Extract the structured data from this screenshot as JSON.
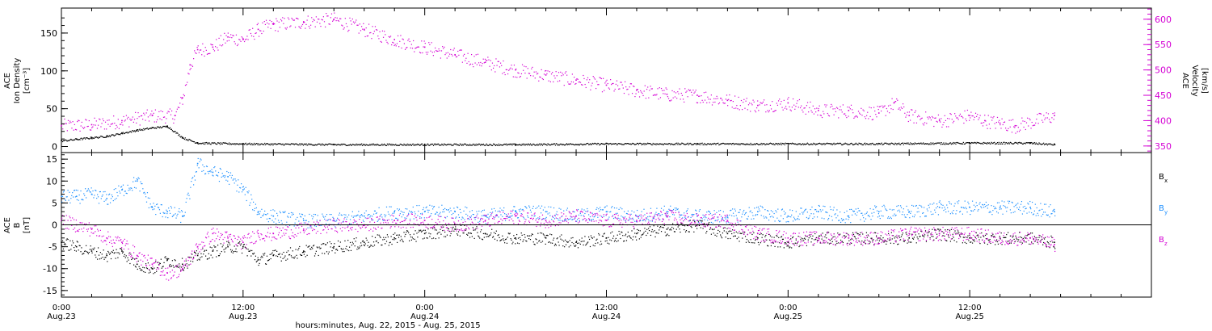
{
  "colors": {
    "density": "#000000",
    "velocity": "#d400d4",
    "bx": "#000000",
    "by": "#1e90ff",
    "bz": "#d400d4",
    "axis": "#000000"
  },
  "x_axis": {
    "title": "hours:minutes, Aug. 22, 2015 - Aug. 25, 2015",
    "range_hours": [
      0,
      72
    ],
    "ticks": [
      {
        "hour": 0,
        "time": "0:00",
        "date": "Aug.23"
      },
      {
        "hour": 12,
        "time": "12:00",
        "date": "Aug.23"
      },
      {
        "hour": 24,
        "time": "0:00",
        "date": "Aug.24"
      },
      {
        "hour": 36,
        "time": "12:00",
        "date": "Aug.24"
      },
      {
        "hour": 48,
        "time": "0:00",
        "date": "Aug.25"
      },
      {
        "hour": 60,
        "time": "12:00",
        "date": "Aug.25"
      }
    ]
  },
  "chart_data": [
    {
      "type": "scatter",
      "panel": "top",
      "left_axis": {
        "label_lines": [
          "ACE",
          "Ion Density",
          "[cm⁻³]"
        ],
        "ylim": [
          -8,
          183
        ],
        "ticks": [
          "0",
          "50",
          "100",
          "150"
        ],
        "tick_values": [
          0,
          50,
          100,
          150
        ]
      },
      "right_axis": {
        "label_lines": [
          "ACE",
          "Velocity",
          "[km/s]"
        ],
        "ylim": [
          337,
          622
        ],
        "ticks": [
          "350",
          "400",
          "450",
          "500",
          "550",
          "600"
        ],
        "tick_values": [
          350,
          400,
          450,
          500,
          550,
          600
        ]
      },
      "series": [
        {
          "name": "Ion Density",
          "axis": "left",
          "x": [
            0,
            1,
            2,
            3,
            4,
            5,
            6,
            7,
            8,
            9,
            12,
            18,
            24,
            30,
            36,
            42,
            48,
            54,
            60,
            64,
            65.6
          ],
          "y": [
            8,
            10,
            12,
            14,
            18,
            22,
            25,
            27,
            12,
            5,
            4,
            3,
            3,
            3,
            4,
            4,
            4,
            4,
            5,
            5,
            3
          ]
        },
        {
          "name": "Velocity",
          "axis": "right",
          "x": [
            0,
            2,
            4,
            6,
            7.5,
            8,
            8.5,
            9,
            10,
            11,
            12,
            13,
            14,
            16,
            18,
            20,
            22,
            24,
            26,
            28,
            30,
            32,
            34,
            36,
            38,
            40,
            42,
            44,
            46,
            48,
            50,
            52,
            54,
            55,
            56,
            58,
            60,
            61,
            62,
            63,
            65.6
          ],
          "y": [
            390,
            392,
            400,
            410,
            410,
            445,
            510,
            540,
            545,
            565,
            560,
            580,
            590,
            595,
            600,
            580,
            560,
            545,
            530,
            515,
            500,
            490,
            480,
            470,
            460,
            452,
            450,
            440,
            430,
            435,
            420,
            420,
            415,
            435,
            410,
            400,
            410,
            400,
            395,
            390,
            410
          ]
        }
      ]
    },
    {
      "type": "scatter",
      "panel": "bottom",
      "left_axis": {
        "label_lines": [
          "ACE",
          "B",
          "[nT]"
        ],
        "ylim": [
          -16.5,
          16.5
        ],
        "ticks": [
          "15",
          "10",
          "5",
          "0",
          "-5",
          "-10",
          "-15"
        ],
        "tick_values": [
          15,
          10,
          5,
          0,
          -5,
          -10,
          -15
        ]
      },
      "legend": {
        "placement": "right",
        "entries": [
          {
            "name": "B",
            "sub": "x"
          },
          {
            "name": "B",
            "sub": "y"
          },
          {
            "name": "B",
            "sub": "z"
          }
        ]
      },
      "series": [
        {
          "name": "Bx",
          "x": [
            0,
            1,
            2,
            3,
            4,
            5,
            6,
            7,
            8,
            9,
            10,
            11,
            12,
            13,
            14,
            16,
            18,
            20,
            22,
            24,
            26,
            28,
            30,
            32,
            34,
            36,
            38,
            40,
            42,
            44,
            46,
            48,
            50,
            52,
            54,
            56,
            58,
            60,
            62,
            64,
            65.6
          ],
          "y": [
            -4,
            -5,
            -6,
            -7,
            -6,
            -9,
            -10,
            -8,
            -9,
            -7,
            -6,
            -5,
            -5,
            -8,
            -7,
            -6,
            -5,
            -4,
            -3,
            -2,
            -1,
            -2,
            -3,
            -3,
            -4,
            -3,
            -2,
            -1,
            0,
            -2,
            -3,
            -4,
            -3,
            -3,
            -3,
            -3,
            -2,
            -3,
            -3,
            -3,
            -4
          ]
        },
        {
          "name": "By",
          "x": [
            0,
            1,
            2,
            3,
            4,
            5,
            6,
            7,
            8,
            9,
            10,
            11,
            12,
            13,
            14,
            16,
            18,
            20,
            22,
            24,
            26,
            28,
            30,
            32,
            34,
            36,
            38,
            40,
            42,
            44,
            46,
            48,
            50,
            52,
            54,
            56,
            58,
            60,
            62,
            64,
            65.6
          ],
          "y": [
            6.5,
            6.5,
            7,
            6,
            8,
            10,
            4,
            3,
            2,
            14,
            12,
            11,
            8,
            3,
            2,
            1,
            1,
            2,
            3,
            3,
            3,
            2,
            3,
            3,
            2,
            3,
            2,
            3,
            2,
            2,
            3,
            2,
            3,
            2,
            3,
            3,
            4,
            4,
            4,
            4,
            3
          ]
        },
        {
          "name": "Bz",
          "x": [
            0,
            1,
            2,
            3,
            4,
            5,
            6,
            7,
            8,
            9,
            10,
            11,
            12,
            13,
            14,
            16,
            18,
            20,
            22,
            24,
            26,
            28,
            30,
            32,
            34,
            36,
            38,
            40,
            42,
            44,
            46,
            48,
            50,
            52,
            54,
            56,
            58,
            60,
            62,
            64,
            65.6
          ],
          "y": [
            1,
            0,
            -1,
            -3,
            -4,
            -7,
            -9,
            -11,
            -10,
            -5,
            -2,
            -3,
            -4,
            -2,
            -2,
            -1,
            0,
            0,
            1,
            1,
            0,
            1,
            2,
            1,
            2,
            1,
            1,
            2,
            1,
            1,
            -2,
            -3,
            -3,
            -3,
            -3,
            -2,
            -2,
            -2,
            -3,
            -3,
            -4.5
          ]
        }
      ]
    }
  ]
}
